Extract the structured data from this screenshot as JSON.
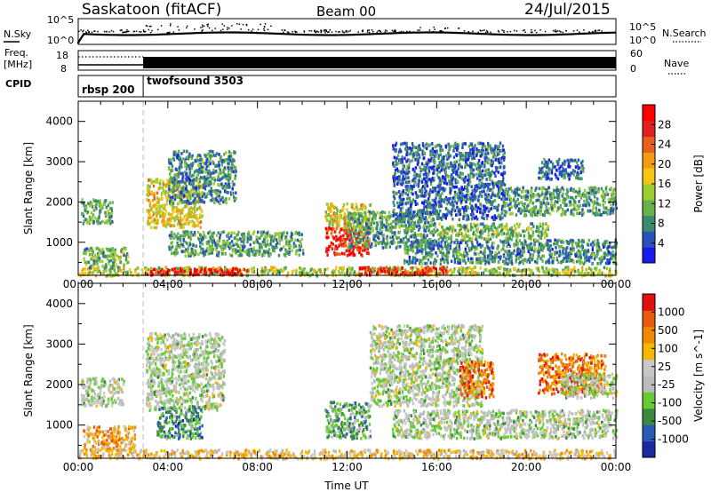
{
  "header": {
    "title": "Saskatoon (fitACF)",
    "beam": "Beam 00",
    "date": "24/Jul/2015"
  },
  "summary_panels": {
    "nsky_label": "N.Sky",
    "nsearch_label": "N.Search",
    "freq_label": "Freq.",
    "freq_unit": "[MHz]",
    "nave_label": "Nave",
    "cpid_label": "CPID",
    "left_ticks_top": [
      "10^5",
      "10^0"
    ],
    "right_ticks_top": [
      "10^5",
      "10^0"
    ],
    "left_ticks_freq": [
      "18",
      "8"
    ],
    "right_ticks_nave": [
      "60",
      "0"
    ],
    "cpid_modes": [
      {
        "name": "rbsp 200",
        "start_hour": 0,
        "end_hour": 2.9
      },
      {
        "name": "twofsound 3503",
        "start_hour": 2.9,
        "end_hour": 24
      }
    ]
  },
  "chart_data": [
    {
      "type": "heatmap",
      "name": "Power",
      "xlabel": "",
      "ylabel": "Slant Range [km]",
      "x_ticks": [
        "00:00",
        "04:00",
        "08:00",
        "12:00",
        "16:00",
        "20:00",
        "00:00"
      ],
      "xlim": [
        0,
        24
      ],
      "ylim": [
        180,
        4500
      ],
      "y_ticks": [
        1000,
        2000,
        3000,
        4000
      ],
      "colorbar": {
        "label": "Power [dB]",
        "ticks": [
          4,
          8,
          12,
          16,
          20,
          24,
          28
        ],
        "colors": [
          "#1a1aee",
          "#2a52be",
          "#3a8c6e",
          "#6ab04c",
          "#9acd32",
          "#f5c518",
          "#f39c12",
          "#e8601c",
          "#e02020",
          "#ff0000"
        ]
      },
      "regions": [
        {
          "x0": 0.0,
          "x1": 24.0,
          "y0": 200,
          "y1": 420,
          "level": 0.45
        },
        {
          "x0": 3.0,
          "x1": 7.5,
          "y0": 220,
          "y1": 380,
          "level": 0.95
        },
        {
          "x0": 12.5,
          "x1": 16.5,
          "y0": 220,
          "y1": 420,
          "level": 0.85
        },
        {
          "x0": 0.2,
          "x1": 2.2,
          "y0": 400,
          "y1": 900,
          "level": 0.35
        },
        {
          "x0": 0.1,
          "x1": 1.5,
          "y0": 1500,
          "y1": 2100,
          "level": 0.35
        },
        {
          "x0": 3.0,
          "x1": 5.5,
          "y0": 1400,
          "y1": 2600,
          "level": 0.55
        },
        {
          "x0": 4.0,
          "x1": 7.0,
          "y0": 2000,
          "y1": 3300,
          "level": 0.25
        },
        {
          "x0": 4.0,
          "x1": 10.0,
          "y0": 700,
          "y1": 1300,
          "level": 0.3
        },
        {
          "x0": 11.0,
          "x1": 13.0,
          "y0": 700,
          "y1": 1400,
          "level": 0.85
        },
        {
          "x0": 11.0,
          "x1": 13.0,
          "y0": 1400,
          "y1": 2000,
          "level": 0.55
        },
        {
          "x0": 12.0,
          "x1": 16.0,
          "y0": 900,
          "y1": 1800,
          "level": 0.3
        },
        {
          "x0": 14.0,
          "x1": 19.0,
          "y0": 1600,
          "y1": 3500,
          "level": 0.2
        },
        {
          "x0": 14.5,
          "x1": 24.0,
          "y0": 500,
          "y1": 1100,
          "level": 0.25
        },
        {
          "x0": 16.0,
          "x1": 21.0,
          "y0": 1100,
          "y1": 1500,
          "level": 0.35
        },
        {
          "x0": 19.0,
          "x1": 24.0,
          "y0": 1700,
          "y1": 2400,
          "level": 0.3
        },
        {
          "x0": 20.5,
          "x1": 22.5,
          "y0": 2600,
          "y1": 3100,
          "level": 0.2
        }
      ]
    },
    {
      "type": "heatmap",
      "name": "Velocity",
      "xlabel": "Time UT",
      "ylabel": "Slant Range [km]",
      "x_ticks": [
        "00:00",
        "04:00",
        "08:00",
        "12:00",
        "16:00",
        "20:00",
        "00:00"
      ],
      "xlim": [
        0,
        24
      ],
      "ylim": [
        180,
        4500
      ],
      "y_ticks": [
        1000,
        2000,
        3000,
        4000
      ],
      "colorbar": {
        "label": "Velocity [m s^-1]",
        "ticks": [
          "1000",
          "500",
          "100",
          "25",
          "-25",
          "-100",
          "-500",
          "-1000"
        ],
        "colors": [
          "#1a2aa0",
          "#2a5ab8",
          "#3b8a3b",
          "#66cc33",
          "#bbbbbb",
          "#c8c8c8",
          "#f5b800",
          "#f08a00",
          "#e85a10",
          "#e01010"
        ]
      },
      "regions": [
        {
          "x0": 0.0,
          "x1": 24.0,
          "y0": 200,
          "y1": 420,
          "level": 0.62
        },
        {
          "x0": 0.2,
          "x1": 2.5,
          "y0": 400,
          "y1": 1000,
          "level": 0.7
        },
        {
          "x0": 0.1,
          "x1": 2.0,
          "y0": 1500,
          "y1": 2200,
          "level": 0.45
        },
        {
          "x0": 3.0,
          "x1": 6.5,
          "y0": 1400,
          "y1": 3300,
          "level": 0.45
        },
        {
          "x0": 3.5,
          "x1": 5.5,
          "y0": 700,
          "y1": 1500,
          "level": 0.25
        },
        {
          "x0": 11.0,
          "x1": 13.0,
          "y0": 700,
          "y1": 1600,
          "level": 0.3
        },
        {
          "x0": 13.0,
          "x1": 18.0,
          "y0": 1500,
          "y1": 3500,
          "level": 0.45
        },
        {
          "x0": 14.0,
          "x1": 24.0,
          "y0": 700,
          "y1": 1400,
          "level": 0.45
        },
        {
          "x0": 17.0,
          "x1": 18.5,
          "y0": 1700,
          "y1": 2600,
          "level": 0.8
        },
        {
          "x0": 20.5,
          "x1": 23.5,
          "y0": 1800,
          "y1": 2800,
          "level": 0.8
        },
        {
          "x0": 21.5,
          "x1": 24.0,
          "y0": 1700,
          "y1": 2300,
          "level": 0.45
        }
      ]
    }
  ],
  "colors": {
    "background": "#ffffff",
    "axis": "#000000",
    "dashed_marker": "#bbbbbb"
  }
}
